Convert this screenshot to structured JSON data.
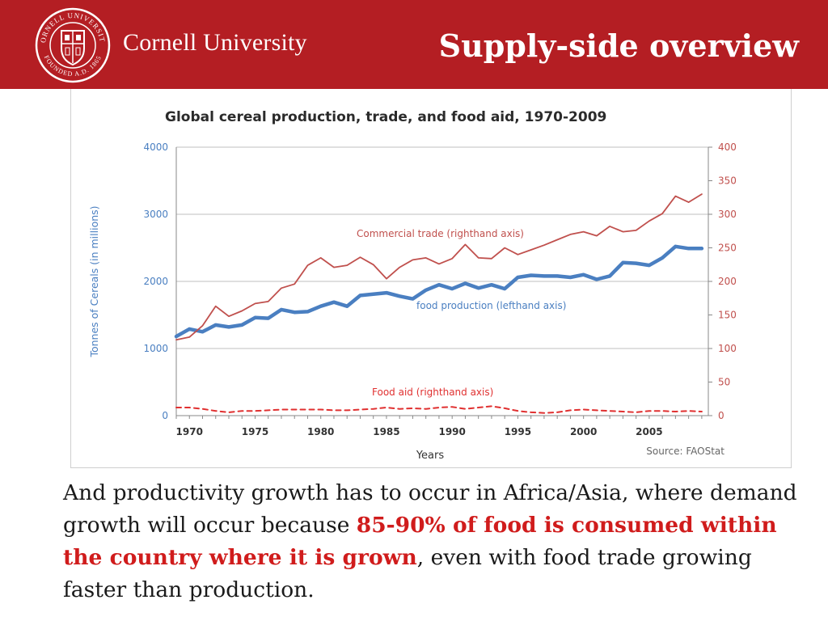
{
  "header": {
    "wordmark": "Cornell University",
    "slide_title": "Supply-side overview",
    "seal": {
      "ring_top": "CORNELL UNIVERSITY",
      "ring_bottom": "FOUNDED A.D. 1865"
    }
  },
  "colors": {
    "header_bg": "#b41e23",
    "food_production": "#4a7fc1",
    "commercial_trade": "#c0504d",
    "food_aid": "#e03030",
    "highlight_text": "#d01c1c"
  },
  "chart_data": {
    "type": "line",
    "title": "Global cereal production, trade, and food aid, 1970-2009",
    "xlabel": "Years",
    "ylabel_left": "Tonnes of Cereals (in millions)",
    "source": "Source: FAOStat",
    "x": [
      1969,
      1970,
      1971,
      1972,
      1973,
      1974,
      1975,
      1976,
      1977,
      1978,
      1979,
      1980,
      1981,
      1982,
      1983,
      1984,
      1985,
      1986,
      1987,
      1988,
      1989,
      1990,
      1991,
      1992,
      1993,
      1994,
      1995,
      1996,
      1997,
      1998,
      1999,
      2000,
      2001,
      2002,
      2003,
      2004,
      2005,
      2006,
      2007,
      2008,
      2009
    ],
    "x_ticks": [
      "1970",
      "1975",
      "1980",
      "1985",
      "1990",
      "1995",
      "2000",
      "2005"
    ],
    "y_left_ticks": [
      "0",
      "1000",
      "2000",
      "3000",
      "4000"
    ],
    "y_right_ticks": [
      "0",
      "50",
      "100",
      "150",
      "200",
      "250",
      "300",
      "350",
      "400"
    ],
    "ylim_left": [
      0,
      4000
    ],
    "ylim_right": [
      0,
      400
    ],
    "grid": true,
    "series": [
      {
        "name": "food production (lefthand axis)",
        "axis": "left",
        "style": "solid-thick",
        "values": [
          1180,
          1290,
          1250,
          1350,
          1320,
          1350,
          1460,
          1450,
          1580,
          1540,
          1550,
          1630,
          1690,
          1630,
          1790,
          1810,
          1830,
          1780,
          1740,
          1870,
          1950,
          1890,
          1970,
          1900,
          1950,
          1890,
          2060,
          2090,
          2080,
          2080,
          2060,
          2100,
          2030,
          2080,
          2280,
          2270,
          2240,
          2350,
          2520,
          2490,
          2490
        ]
      },
      {
        "name": "Commercial trade (righthand axis)",
        "axis": "right",
        "style": "solid",
        "values": [
          113,
          117,
          134,
          163,
          148,
          156,
          167,
          170,
          190,
          196,
          224,
          235,
          221,
          224,
          236,
          225,
          204,
          221,
          232,
          235,
          226,
          234,
          255,
          235,
          234,
          250,
          240,
          247,
          254,
          262,
          270,
          274,
          268,
          282,
          274,
          276,
          290,
          301,
          327,
          318,
          330
        ]
      },
      {
        "name": "Food aid (righthand axis)",
        "axis": "right",
        "style": "dashed",
        "values": [
          12,
          12,
          10,
          7,
          5,
          7,
          7,
          8,
          9,
          9,
          9,
          9,
          8,
          8,
          9,
          10,
          12,
          10,
          11,
          10,
          12,
          13,
          10,
          12,
          14,
          11,
          7,
          5,
          4,
          5,
          8,
          9,
          8,
          7,
          6,
          5,
          7,
          7,
          6,
          7,
          6
        ]
      }
    ],
    "series_labels": {
      "commercial_trade": "Commercial trade (righthand axis)",
      "food_production": "food production (lefthand axis)",
      "food_aid": "Food aid (righthand axis)"
    }
  },
  "body": {
    "part1": "And productivity growth has to occur in Africa/Asia, where demand growth will occur because ",
    "highlight": "85-90% of food is consumed within the country where it is grown",
    "part2": ", even with food trade growing faster than production."
  }
}
